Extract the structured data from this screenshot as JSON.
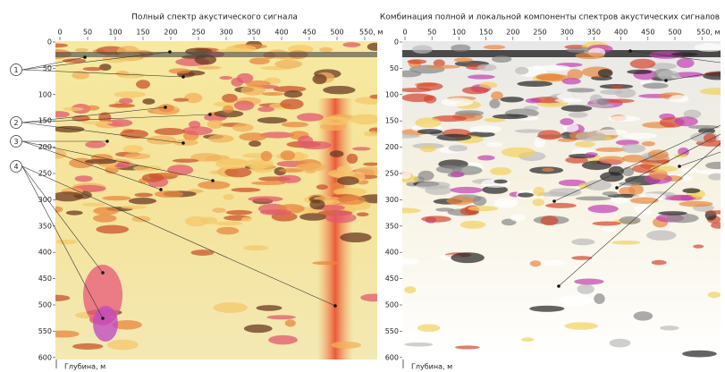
{
  "panels": [
    {
      "title": "Полный спектр акустического сигнала",
      "x_ticks": [
        "0",
        "50",
        "100",
        "150",
        "200",
        "250",
        "300",
        "350",
        "400",
        "450",
        "500",
        "550, м"
      ],
      "y_ticks": [
        "0",
        "50",
        "100",
        "150",
        "200",
        "250",
        "300",
        "350",
        "400",
        "450",
        "500",
        "550",
        "600"
      ],
      "depth_label": "Глубина, м"
    },
    {
      "title": "Комбинация полной и локальной компоненты спектров акустических сигналов",
      "x_ticks": [
        "0",
        "50",
        "100",
        "150",
        "200",
        "250",
        "300",
        "350",
        "400",
        "450",
        "500",
        "550, м"
      ],
      "y_ticks": [
        "0",
        "50",
        "100",
        "150",
        "200",
        "250",
        "300",
        "350",
        "400",
        "450",
        "500",
        "550",
        "600"
      ],
      "depth_label": "Глубина, м"
    }
  ],
  "callouts": [
    "1",
    "2",
    "3",
    "4"
  ]
}
